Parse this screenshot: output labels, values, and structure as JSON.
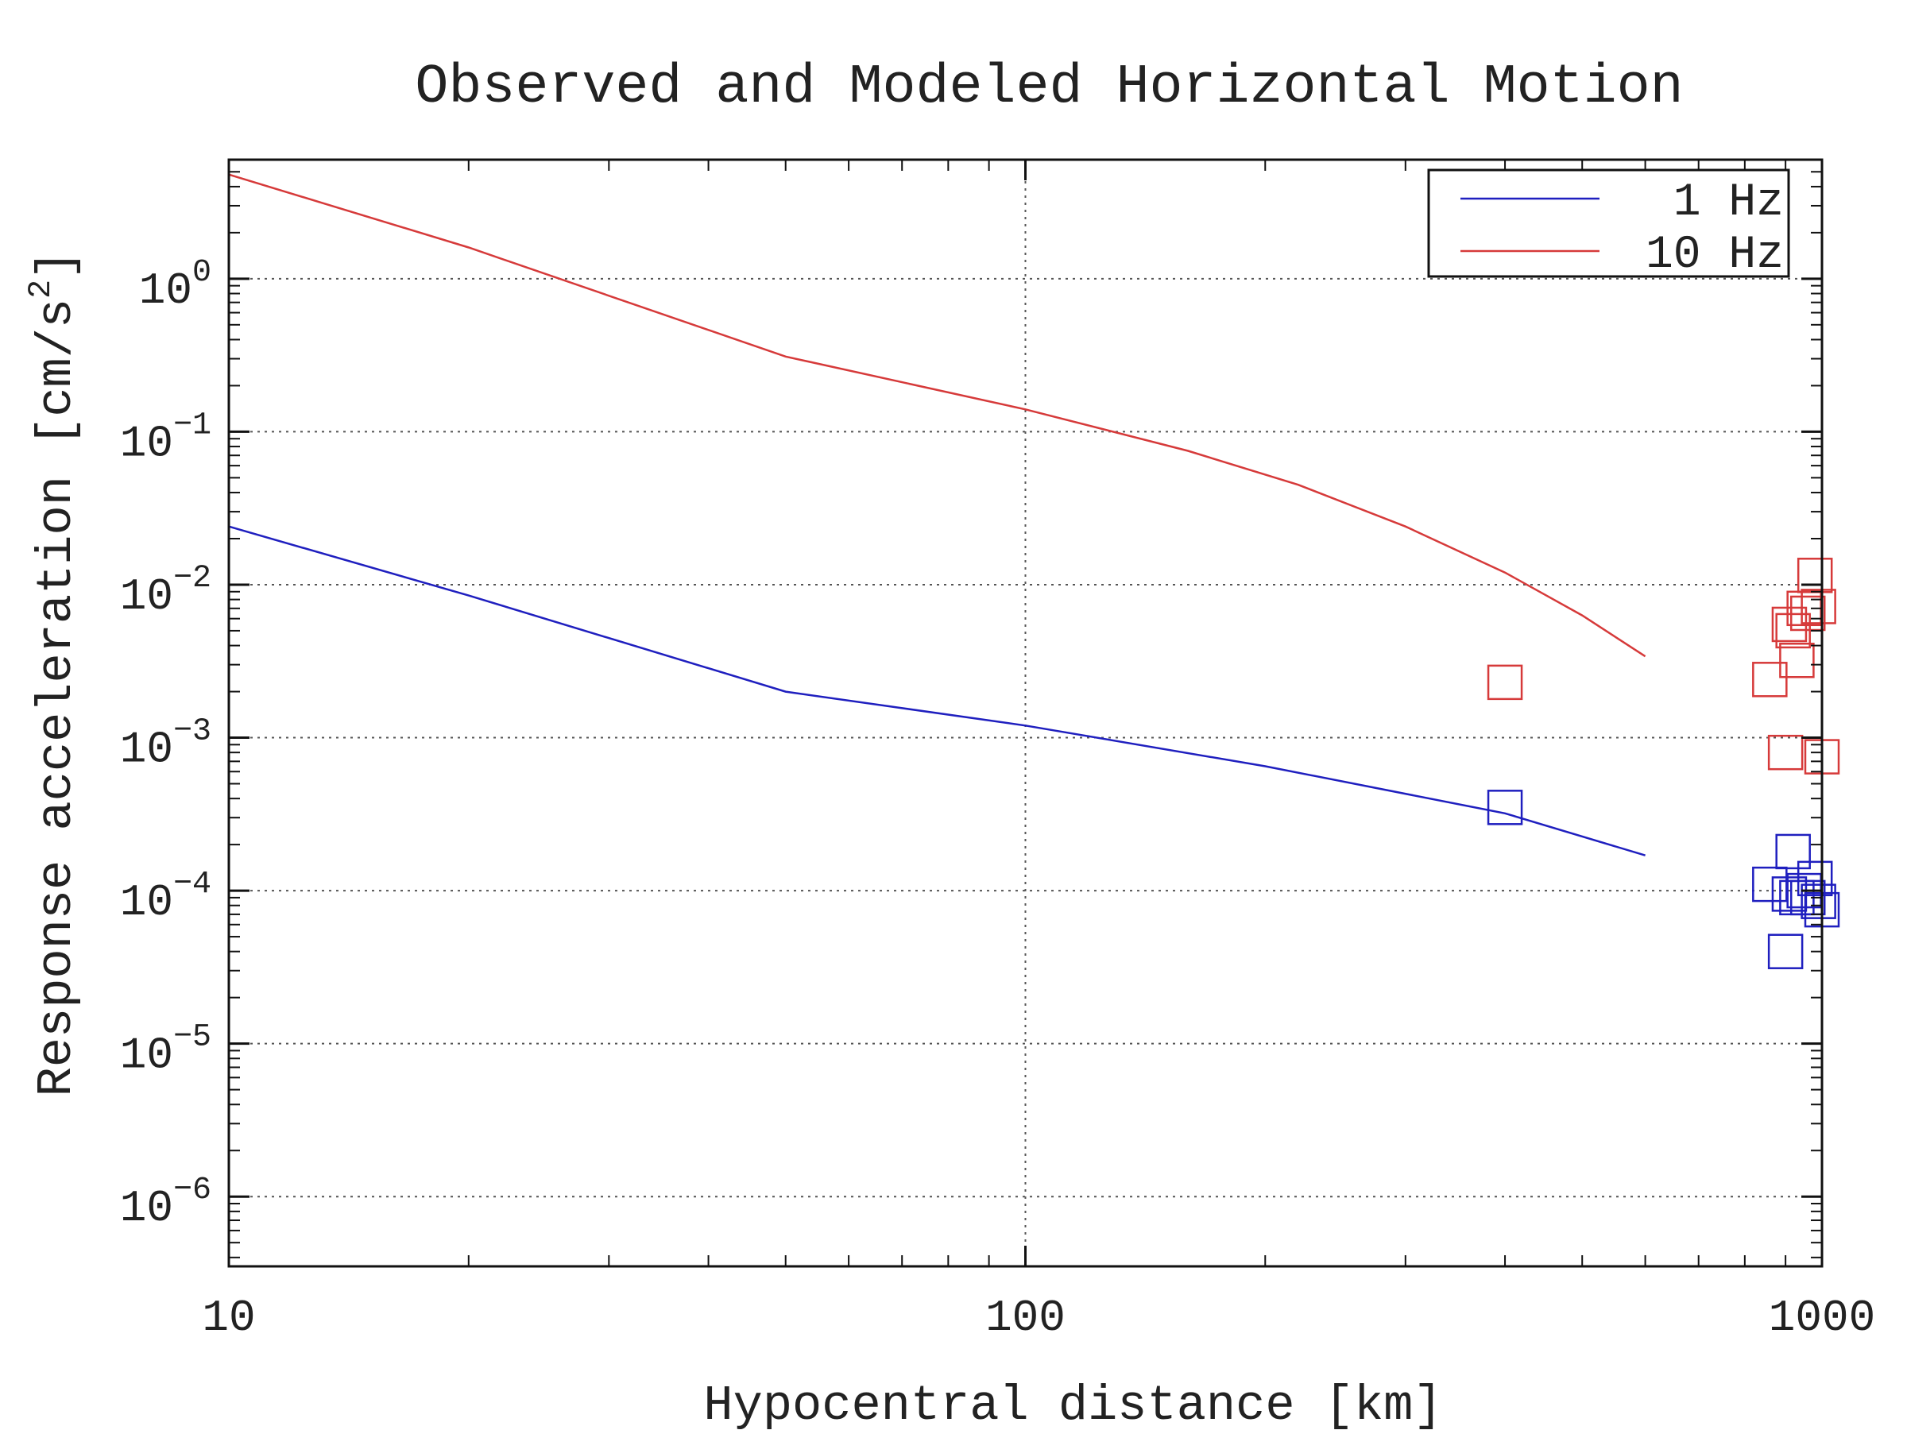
{
  "chart_data": {
    "type": "line",
    "title": "Observed and Modeled Horizontal Motion",
    "xlabel": "Hypocentral distance [km]",
    "ylabel": "Response acceleration [cm/s²]",
    "ylabel_main": "Response acceleration [cm/s",
    "ylabel_sup": "2",
    "ylabel_end": "]",
    "xscale": "log",
    "yscale": "log",
    "xlim": [
      10,
      1000
    ],
    "ylim": [
      3.5e-07,
      6
    ],
    "grid": true,
    "legend_position": "top-right",
    "x_ticks": [
      {
        "value": 10,
        "label": "10"
      },
      {
        "value": 100,
        "label": "100"
      },
      {
        "value": 1000,
        "label": "1000"
      }
    ],
    "y_ticks": [
      {
        "value": 1,
        "base": "10",
        "exp": "0"
      },
      {
        "value": 0.1,
        "base": "10",
        "exp": "−1"
      },
      {
        "value": 0.01,
        "base": "10",
        "exp": "−2"
      },
      {
        "value": 0.001,
        "base": "10",
        "exp": "−3"
      },
      {
        "value": 0.0001,
        "base": "10",
        "exp": "−4"
      },
      {
        "value": 1e-05,
        "base": "10",
        "exp": "−5"
      },
      {
        "value": 1e-06,
        "base": "10",
        "exp": "−6"
      }
    ],
    "series": [
      {
        "name": "1 Hz",
        "color": "#1f1fbf",
        "model_x": [
          10,
          20,
          50,
          100,
          200,
          400,
          600
        ],
        "model_y": [
          0.024,
          0.0085,
          0.002,
          0.0012,
          0.00065,
          0.00032,
          0.00017
        ],
        "observed_x": [
          400,
          860,
          900,
          910,
          920,
          930,
          950,
          960,
          980,
          990,
          1000
        ],
        "observed_y": [
          0.00035,
          0.00011,
          4e-05,
          9.5e-05,
          0.00018,
          9e-05,
          0.0001,
          9e-05,
          0.00012,
          8.5e-05,
          7.5e-05
        ]
      },
      {
        "name": "10 Hz",
        "color": "#d63a3a",
        "model_x": [
          10,
          20,
          50,
          100,
          160,
          220,
          300,
          400,
          500,
          600
        ],
        "model_y": [
          4.8,
          1.6,
          0.31,
          0.14,
          0.075,
          0.045,
          0.024,
          0.012,
          0.0063,
          0.0034
        ],
        "observed_x": [
          400,
          860,
          900,
          910,
          920,
          930,
          950,
          960,
          980,
          990,
          1000
        ],
        "observed_y": [
          0.0023,
          0.0024,
          0.0008,
          0.0055,
          0.005,
          0.0032,
          0.007,
          0.0065,
          0.0115,
          0.0072,
          0.00075
        ]
      }
    ]
  }
}
